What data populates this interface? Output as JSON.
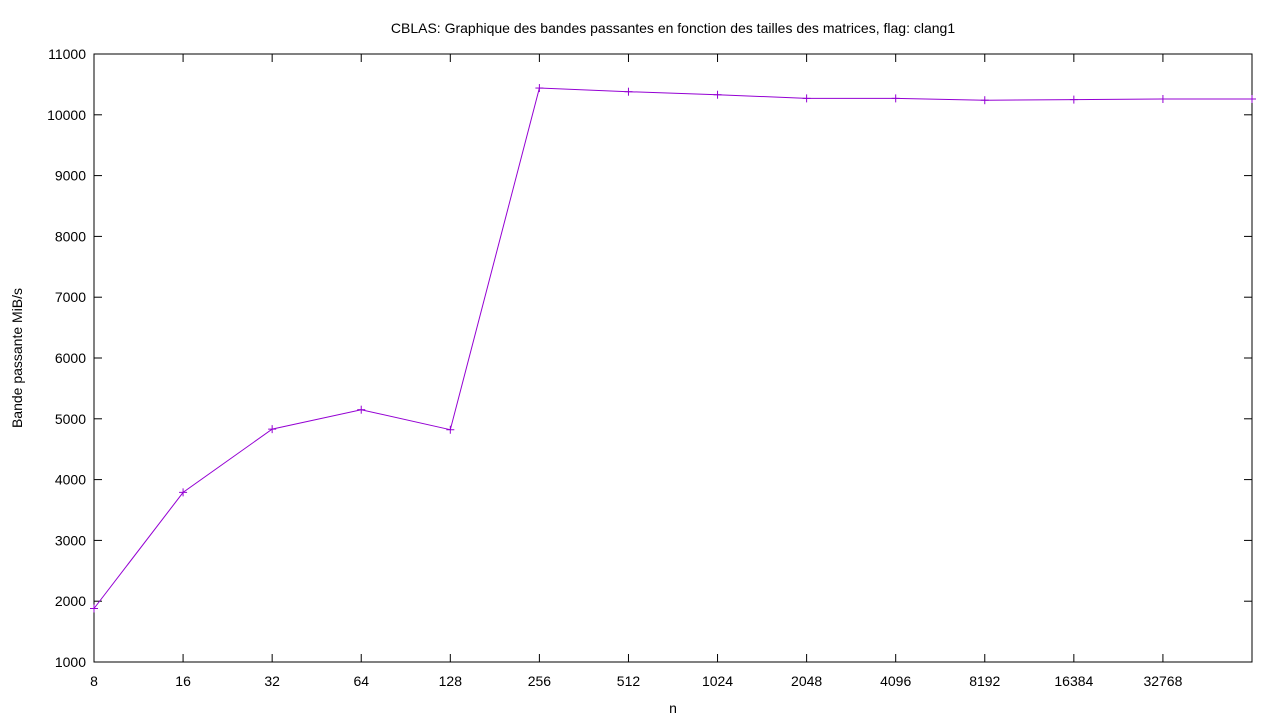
{
  "chart_data": {
    "type": "line",
    "title": "CBLAS: Graphique des bandes passantes en fonction des tailles des matrices, flag: clang1",
    "xlabel": "n",
    "ylabel": "Bande passante MiB/s",
    "x_scale": "log2",
    "x": [
      8,
      16,
      32,
      64,
      128,
      256,
      512,
      1024,
      2048,
      4096,
      8192,
      16384,
      32768,
      65536
    ],
    "x_tick_labels": [
      "8",
      "16",
      "32",
      "64",
      "128",
      "256",
      "512",
      "1024",
      "2048",
      "4096",
      "8192",
      "16384",
      "32768"
    ],
    "xlim": [
      8,
      65536
    ],
    "y_ticks": [
      1000,
      2000,
      3000,
      4000,
      5000,
      6000,
      7000,
      8000,
      9000,
      10000,
      11000
    ],
    "ylim": [
      1000,
      11000
    ],
    "grid": false,
    "legend": "none",
    "series": [
      {
        "color": "#9400d3",
        "marker": "plus",
        "values": [
          1880,
          3790,
          4830,
          5150,
          4820,
          10440,
          10380,
          10330,
          10270,
          10270,
          10240,
          10250,
          10260,
          10260
        ]
      }
    ]
  }
}
